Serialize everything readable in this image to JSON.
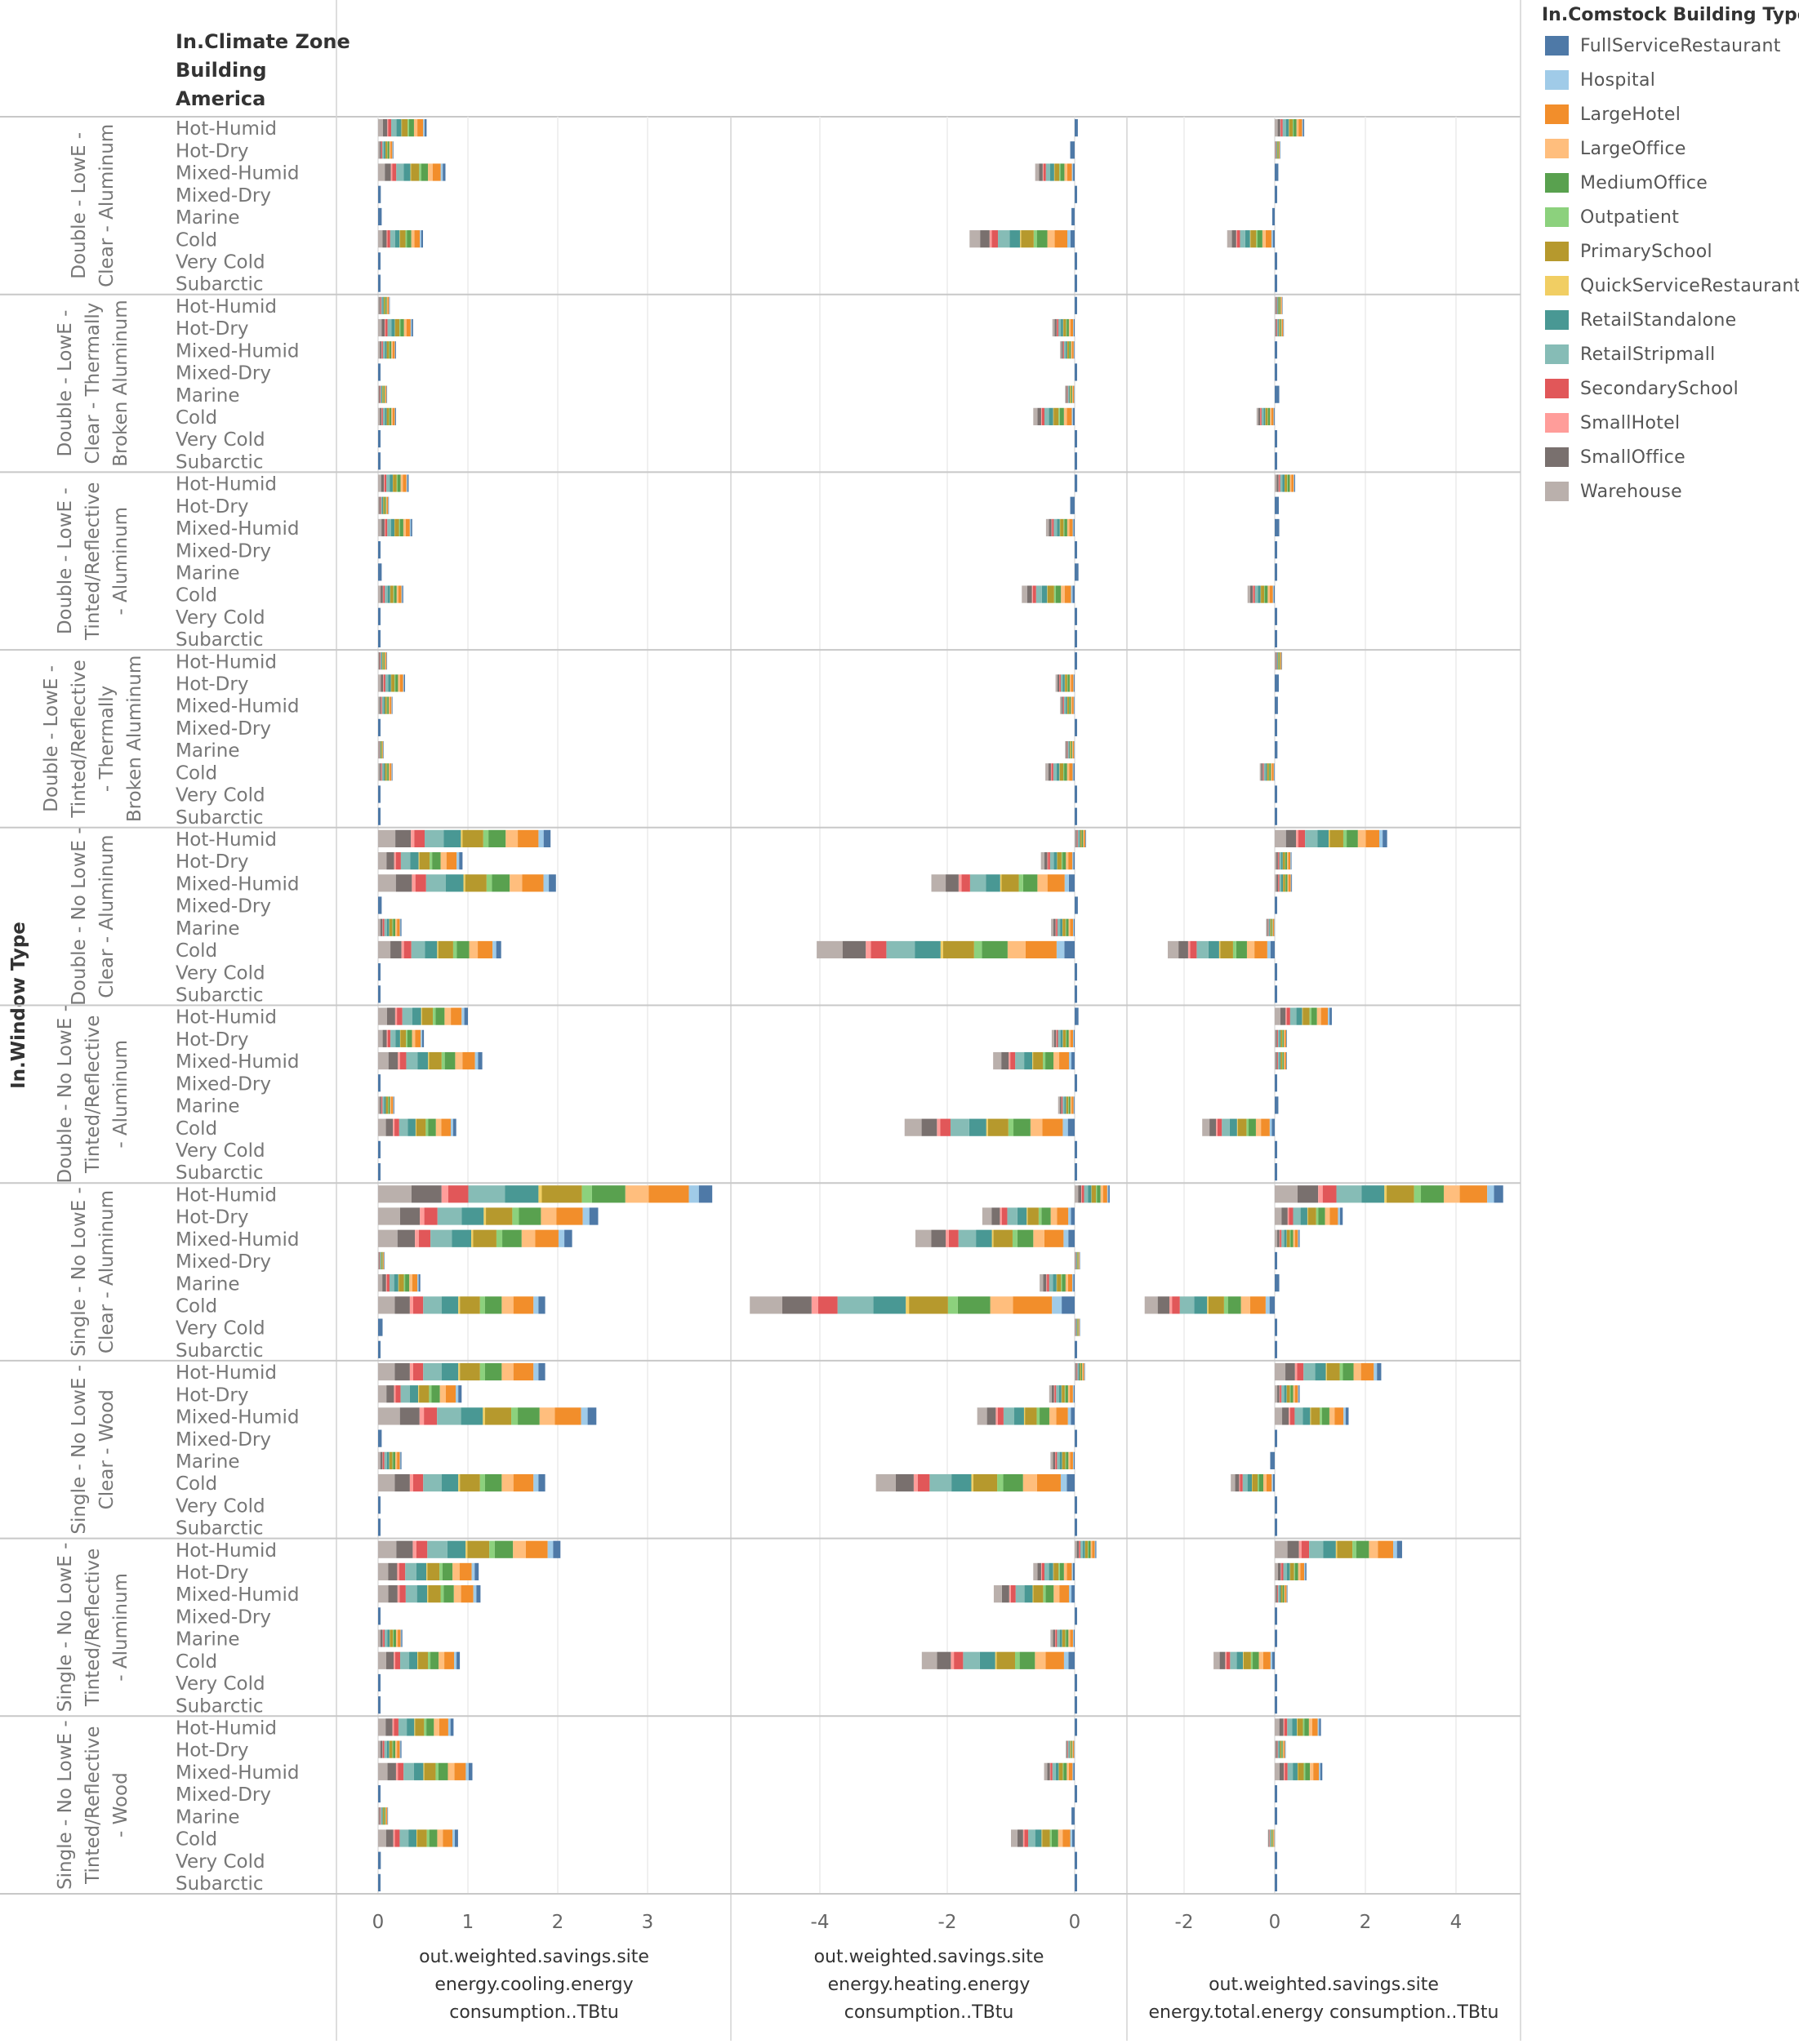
{
  "chart_data": {
    "type": "bar",
    "orientation": "horizontal-stacked",
    "row_dimension_title": "In.Window Type",
    "column_header_title": [
      "In.Climate Zone",
      "Building",
      "America"
    ],
    "legend": {
      "title": "In.Comstock Building Type",
      "position": "top-right",
      "items": [
        {
          "name": "FullServiceRestaurant",
          "color": "#4e79a7"
        },
        {
          "name": "Hospital",
          "color": "#a0cbe8"
        },
        {
          "name": "LargeHotel",
          "color": "#f28e2b"
        },
        {
          "name": "LargeOffice",
          "color": "#ffbe7d"
        },
        {
          "name": "MediumOffice",
          "color": "#59a14f"
        },
        {
          "name": "Outpatient",
          "color": "#8cd17d"
        },
        {
          "name": "PrimarySchool",
          "color": "#b6992d"
        },
        {
          "name": "QuickServiceRestaurant",
          "color": "#f1ce63"
        },
        {
          "name": "RetailStandalone",
          "color": "#499894"
        },
        {
          "name": "RetailStripmall",
          "color": "#86bcb6"
        },
        {
          "name": "SecondarySchool",
          "color": "#e15759"
        },
        {
          "name": "SmallHotel",
          "color": "#ff9d9a"
        },
        {
          "name": "SmallOffice",
          "color": "#79706e"
        },
        {
          "name": "Warehouse",
          "color": "#bab0ac"
        }
      ]
    },
    "climate_zones": [
      "Hot-Humid",
      "Hot-Dry",
      "Mixed-Humid",
      "Mixed-Dry",
      "Marine",
      "Cold",
      "Very Cold",
      "Subarctic"
    ],
    "panels": [
      {
        "key": "cooling",
        "title": [
          "out.weighted.savings.site",
          "energy.cooling.energy",
          "consumption..TBtu"
        ],
        "xlim": [
          -0.27,
          3.9
        ],
        "ticks": [
          0,
          1,
          2,
          3
        ]
      },
      {
        "key": "heating",
        "title": [
          "out.weighted.savings.site",
          "energy.heating.energy",
          "consumption..TBtu"
        ],
        "xlim": [
          -5.3,
          0.9
        ],
        "ticks": [
          -4,
          -2,
          0
        ]
      },
      {
        "key": "total",
        "title": [
          "out.weighted.savings.site",
          "energy.total.energy consumption..TBtu"
        ],
        "xlim": [
          -3.3,
          5.4
        ],
        "ticks": [
          -2,
          0,
          2,
          4
        ]
      }
    ],
    "groups": [
      {
        "label": [
          "Double - LowE -",
          "Clear - Aluminum"
        ],
        "cooling": [
          0.54,
          0.17,
          0.75,
          0.03,
          0.04,
          0.5,
          0.01,
          0.01
        ],
        "heating": [
          0.05,
          -0.07,
          -0.62,
          0.03,
          -0.05,
          -1.65,
          0.01,
          0.01
        ],
        "total": [
          0.65,
          0.12,
          0.08,
          0.02,
          -0.03,
          -1.05,
          0.01,
          0.01
        ]
      },
      {
        "label": [
          "Double - LowE -",
          "Clear - Thermally",
          "Broken Aluminum"
        ],
        "cooling": [
          0.13,
          0.39,
          0.2,
          0.01,
          0.1,
          0.2,
          0.01,
          0.01
        ],
        "heating": [
          0.02,
          -0.35,
          -0.23,
          0.02,
          -0.15,
          -0.65,
          0.01,
          0.01
        ],
        "total": [
          0.17,
          0.2,
          0.04,
          0.01,
          0.1,
          -0.4,
          0.01,
          0.01
        ]
      },
      {
        "label": [
          "Double - LowE -",
          "Tinted/Reflective",
          "- Aluminum"
        ],
        "cooling": [
          0.34,
          0.12,
          0.38,
          0.01,
          0.04,
          0.28,
          0.01,
          0.01
        ],
        "heating": [
          0.04,
          -0.07,
          -0.45,
          0.02,
          0.06,
          -0.83,
          0.01,
          0.01
        ],
        "total": [
          0.45,
          0.09,
          0.1,
          0.01,
          0.04,
          -0.6,
          0.01,
          0.01
        ]
      },
      {
        "label": [
          "Double - LowE -",
          "Tinted/Reflective",
          "- Thermally",
          "Broken Aluminum"
        ],
        "cooling": [
          0.1,
          0.3,
          0.16,
          0.01,
          0.06,
          0.16,
          0.01,
          0.01
        ],
        "heating": [
          0.03,
          -0.3,
          -0.23,
          0.02,
          -0.15,
          -0.46,
          0.01,
          0.02
        ],
        "total": [
          0.16,
          0.09,
          0.07,
          0.01,
          0.06,
          -0.33,
          0.01,
          0.01
        ]
      },
      {
        "label": [
          "Double - No LowE -",
          "Clear - Aluminum"
        ],
        "cooling": [
          1.92,
          0.94,
          1.98,
          0.04,
          0.26,
          1.37,
          0.01,
          0.01
        ],
        "heating": [
          0.18,
          -0.53,
          -2.25,
          0.05,
          -0.37,
          -4.05,
          0.01,
          0.01
        ],
        "total": [
          2.48,
          0.37,
          0.38,
          0.02,
          -0.19,
          -2.36,
          0.01,
          0.01
        ]
      },
      {
        "label": [
          "Double - No LowE -",
          "Tinted/Reflective",
          "- Aluminum"
        ],
        "cooling": [
          1.0,
          0.51,
          1.16,
          0.02,
          0.18,
          0.87,
          0.01,
          0.01
        ],
        "heating": [
          0.06,
          -0.36,
          -1.28,
          0.03,
          -0.26,
          -2.67,
          0.01,
          0.01
        ],
        "total": [
          1.26,
          0.27,
          0.27,
          0.01,
          0.08,
          -1.6,
          0.01,
          0.01
        ]
      },
      {
        "label": [
          "Single - No LowE -",
          "Clear - Aluminum"
        ],
        "cooling": [
          3.72,
          2.45,
          2.16,
          0.07,
          0.47,
          1.86,
          0.05,
          0.01
        ],
        "heating": [
          0.55,
          -1.45,
          -2.5,
          0.08,
          -0.55,
          -5.1,
          0.08,
          0.01
        ],
        "total": [
          5.04,
          1.5,
          0.55,
          0.01,
          0.1,
          -2.87,
          0.04,
          0.01
        ]
      },
      {
        "label": [
          "Single - No LowE -",
          "Clear - Wood"
        ],
        "cooling": [
          1.86,
          0.93,
          2.43,
          0.04,
          0.26,
          1.86,
          0.02,
          0.01
        ],
        "heating": [
          0.16,
          -0.4,
          -1.53,
          0.02,
          -0.38,
          -3.12,
          0.03,
          0.01
        ],
        "total": [
          2.35,
          0.55,
          1.63,
          0.02,
          -0.1,
          -0.97,
          0.01,
          0.01
        ]
      },
      {
        "label": [
          "Single - No LowE -",
          "Tinted/Reflective",
          "- Aluminum"
        ],
        "cooling": [
          2.03,
          1.12,
          1.14,
          0.02,
          0.27,
          0.91,
          0.01,
          0.01
        ],
        "heating": [
          0.34,
          -0.65,
          -1.27,
          0.02,
          -0.38,
          -2.4,
          0.03,
          0.01
        ],
        "total": [
          2.81,
          0.7,
          0.28,
          0.01,
          0.05,
          -1.35,
          0.01,
          0.01
        ]
      },
      {
        "label": [
          "Single - No LowE -",
          "Tinted/Reflective",
          "- Wood"
        ],
        "cooling": [
          0.84,
          0.26,
          1.05,
          0.02,
          0.11,
          0.89,
          0.03,
          0.01
        ],
        "heating": [
          0.03,
          -0.14,
          -0.48,
          0.02,
          -0.05,
          -1.0,
          0.01,
          0.01
        ],
        "total": [
          1.02,
          0.24,
          1.05,
          0.02,
          0.03,
          -0.15,
          0.01,
          0.01
        ]
      }
    ],
    "segment_mix": {
      "positive_order": [
        "Warehouse",
        "SmallOffice",
        "SmallHotel",
        "SecondarySchool",
        "RetailStripmall",
        "RetailStandalone",
        "QuickServiceRestaurant",
        "PrimarySchool",
        "Outpatient",
        "MediumOffice",
        "LargeOffice",
        "LargeHotel",
        "Hospital",
        "FullServiceRestaurant"
      ],
      "weights": [
        0.1,
        0.09,
        0.02,
        0.06,
        0.11,
        0.1,
        0.01,
        0.12,
        0.03,
        0.1,
        0.07,
        0.12,
        0.03,
        0.04
      ]
    }
  }
}
